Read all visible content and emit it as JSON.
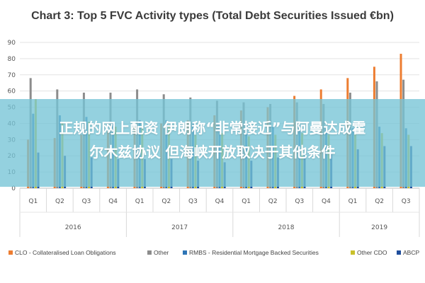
{
  "chart_data": {
    "type": "bar",
    "title": "Chart 3: Top 5 FVC Activity types (Total Debt Securities Issued €bn)",
    "categories": [
      "Q1",
      "Q2",
      "Q3",
      "Q4",
      "Q1",
      "Q2",
      "Q3",
      "Q4",
      "Q1",
      "Q2",
      "Q3",
      "Q4",
      "Q1",
      "Q2",
      "Q3"
    ],
    "groups": [
      {
        "label": "2016",
        "start": 0,
        "end": 3
      },
      {
        "label": "2017",
        "start": 4,
        "end": 7
      },
      {
        "label": "2018",
        "start": 8,
        "end": 11
      },
      {
        "label": "2019",
        "start": 12,
        "end": 14
      }
    ],
    "ylim": [
      0,
      90
    ],
    "yticks": [
      0,
      10,
      20,
      30,
      40,
      50,
      60,
      70,
      80,
      90
    ],
    "grid": true,
    "legend_position": "bottom",
    "series": [
      {
        "name": "CLO - Collateralised Loan Obligations",
        "color": "#ED7D31",
        "values": [
          30,
          31,
          33,
          35,
          38,
          40,
          42,
          45,
          48,
          50,
          57,
          61,
          68,
          75,
          83
        ]
      },
      {
        "name": "Other",
        "color": "#8C8C8C",
        "values": [
          68,
          61,
          59,
          59,
          61,
          58,
          56,
          54,
          53,
          52,
          53,
          52,
          59,
          66,
          67
        ]
      },
      {
        "name": "RMBS - Residential Mortgage Backed Securities",
        "color": "#2E75B6",
        "values": [
          46,
          45,
          44,
          41,
          42,
          42,
          41,
          40,
          40,
          38,
          39,
          37,
          37,
          38,
          37
        ]
      },
      {
        "name": "Other CDO",
        "color": "#C9C02B",
        "values": [
          55,
          40,
          41,
          38,
          39,
          38,
          33,
          34,
          32,
          33,
          34,
          33,
          34,
          34,
          33
        ]
      },
      {
        "name": "ABCP",
        "color": "#1F4E9C",
        "values": [
          22,
          20,
          19,
          18,
          18,
          18,
          17,
          16,
          17,
          19,
          20,
          21,
          24,
          26,
          26
        ]
      }
    ]
  },
  "overlay": {
    "line1": "正规的网上配资 伊朗称“非常接近”与阿曼达成霍",
    "line2": "尔木兹协议 但海峡开放取决于其他条件"
  }
}
